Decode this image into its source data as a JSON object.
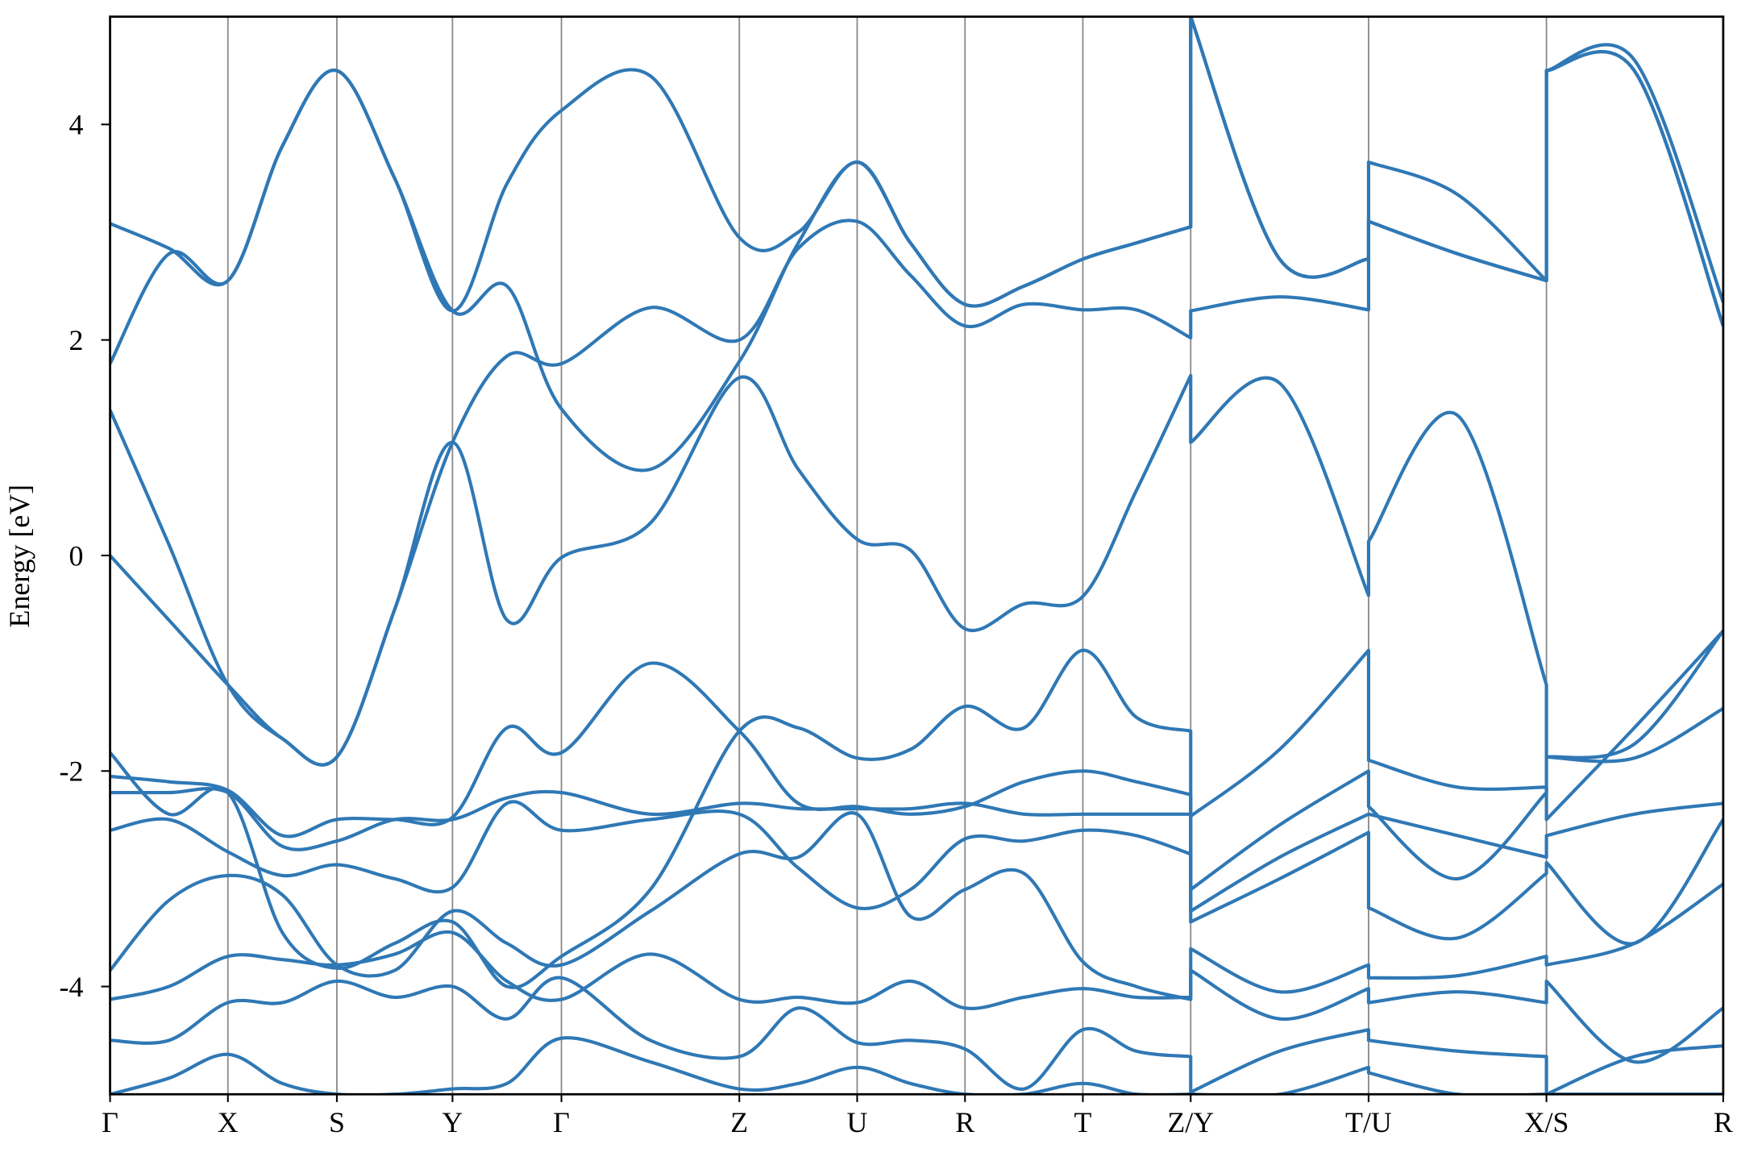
{
  "chart_data": {
    "type": "line",
    "ylabel": "Energy [eV]",
    "ylim": [
      -5,
      5
    ],
    "yticks": [
      -4,
      -2,
      0,
      2,
      4
    ],
    "xlim": [
      0,
      14.51
    ],
    "xticks": [
      {
        "value": 0,
        "label": "Γ"
      },
      {
        "value": 1.06,
        "label": "X"
      },
      {
        "value": 2.04,
        "label": "S"
      },
      {
        "value": 3.08,
        "label": "Y"
      },
      {
        "value": 4.06,
        "label": "Γ"
      },
      {
        "value": 5.66,
        "label": "Z"
      },
      {
        "value": 6.72,
        "label": "U"
      },
      {
        "value": 7.69,
        "label": "R"
      },
      {
        "value": 8.75,
        "label": "T"
      },
      {
        "value": 9.72,
        "label": "Z/Y"
      },
      {
        "value": 11.32,
        "label": "T/U"
      },
      {
        "value": 12.92,
        "label": "X/S"
      },
      {
        "value": 14.51,
        "label": "R"
      }
    ],
    "color": "#2f78b5",
    "grid_color": "#888888",
    "x": [
      0,
      0.53,
      1.06,
      1.55,
      2.04,
      2.56,
      3.08,
      3.57,
      4.06,
      4.86,
      5.66,
      6.19,
      6.72,
      7.2,
      7.69,
      8.22,
      8.75,
      9.23,
      9.72,
      9.72,
      10.52,
      11.32,
      11.32,
      12.12,
      12.92,
      12.92,
      13.71,
      14.51
    ],
    "series": [
      {
        "values": [
          0,
          -0.6,
          -1.2,
          -1.7,
          -1.87,
          -0.5,
          1.05,
          -0.6,
          -0.02,
          0.3,
          1.65,
          0.8,
          0.15,
          0.05,
          -0.68,
          -0.45,
          -0.38,
          0.6,
          1.67,
          1.05,
          1.6,
          -0.37,
          0.13,
          1.3,
          -1.2,
          -1.87,
          -1.75,
          -0.7
        ]
      },
      {
        "values": [
          1.35,
          0.1,
          -1.2,
          -1.7,
          -1.87,
          -0.5,
          1.05,
          1.85,
          1.78,
          2.3,
          2.0,
          2.85,
          3.1,
          2.6,
          2.13,
          2.33,
          2.28,
          2.28,
          2.02,
          2.27,
          2.4,
          2.28,
          3.65,
          3.35,
          2.55,
          4.5,
          4.6,
          2.35
        ]
      },
      {
        "values": [
          3.08,
          2.85,
          2.55,
          3.8,
          4.5,
          3.5,
          2.27,
          2.5,
          1.36,
          0.8,
          1.8,
          2.9,
          3.65,
          2.9,
          2.33,
          2.5,
          2.75,
          2.9,
          3.05,
          5.0,
          2.75,
          2.75,
          3.1,
          2.8,
          2.55,
          4.5,
          4.5,
          2.13
        ]
      },
      {
        "values": [
          1.78,
          2.8,
          2.55,
          3.8,
          4.5,
          3.5,
          2.27,
          3.45,
          4.13,
          4.45,
          2.95,
          3.0,
          3.65,
          2.9,
          2.33,
          2.5,
          2.75,
          2.9,
          3.05,
          5.0,
          2.75,
          2.75,
          3.1,
          2.8,
          2.55,
          4.5,
          4.5,
          2.13
        ]
      },
      {
        "values": [
          -1.83,
          -2.4,
          -2.2,
          -3.5,
          -3.83,
          -3.6,
          -3.4,
          -4.0,
          -3.72,
          -3.1,
          -1.63,
          -1.6,
          -1.88,
          -1.8,
          -1.4,
          -1.6,
          -0.88,
          -1.5,
          -1.63,
          -2.42,
          -1.8,
          -0.88,
          -1.9,
          -2.15,
          -2.15,
          -2.45,
          -1.6,
          -0.7
        ]
      },
      {
        "values": [
          -2.05,
          -2.1,
          -2.18,
          -2.6,
          -2.45,
          -2.45,
          -2.43,
          -1.6,
          -1.83,
          -1.0,
          -1.63,
          -2.3,
          -2.33,
          -2.4,
          -2.33,
          -2.1,
          -2.0,
          -2.1,
          -2.22,
          -3.1,
          -2.5,
          -2.0,
          -2.33,
          -3.0,
          -2.2,
          -1.87,
          -1.88,
          -1.42
        ]
      },
      {
        "values": [
          -2.2,
          -2.2,
          -2.2,
          -2.7,
          -2.65,
          -2.45,
          -2.45,
          -2.25,
          -2.2,
          -2.4,
          -2.3,
          -2.35,
          -2.35,
          -2.35,
          -2.3,
          -2.4,
          -2.4,
          -2.4,
          -2.4,
          -3.3,
          -2.8,
          -2.4,
          -2.4,
          -2.6,
          -2.8,
          -2.6,
          -2.4,
          -2.3
        ]
      },
      {
        "values": [
          -2.55,
          -2.45,
          -2.75,
          -2.97,
          -2.87,
          -3.0,
          -3.08,
          -2.3,
          -2.55,
          -2.45,
          -2.4,
          -2.9,
          -3.27,
          -3.1,
          -2.63,
          -2.65,
          -2.55,
          -2.6,
          -2.77,
          -3.4,
          -3.0,
          -2.57,
          -3.27,
          -3.55,
          -2.95,
          -2.85,
          -3.6,
          -2.45
        ]
      },
      {
        "values": [
          -3.85,
          -3.2,
          -2.97,
          -3.15,
          -3.8,
          -3.85,
          -3.3,
          -3.6,
          -3.8,
          -3.3,
          -2.77,
          -2.8,
          -2.4,
          -3.35,
          -3.1,
          -2.95,
          -3.77,
          -4.0,
          -4.12,
          -3.65,
          -4.05,
          -3.8,
          -3.92,
          -3.9,
          -3.72,
          -3.8,
          -3.6,
          -3.05
        ]
      },
      {
        "values": [
          -4.12,
          -4.0,
          -3.72,
          -3.75,
          -3.8,
          -3.7,
          -3.5,
          -3.95,
          -4.12,
          -3.7,
          -4.12,
          -4.1,
          -4.15,
          -3.95,
          -4.2,
          -4.1,
          -4.02,
          -4.1,
          -4.1,
          -3.85,
          -4.3,
          -4.02,
          -4.15,
          -4.05,
          -4.15,
          -3.95,
          -4.7,
          -4.2
        ]
      },
      {
        "values": [
          -4.5,
          -4.5,
          -4.15,
          -4.15,
          -3.95,
          -4.1,
          -4.0,
          -4.3,
          -3.92,
          -4.5,
          -4.65,
          -4.2,
          -4.52,
          -4.5,
          -4.58,
          -4.95,
          -4.4,
          -4.6,
          -4.65,
          -4.98,
          -4.6,
          -4.4,
          -4.5,
          -4.6,
          -4.65,
          -5.0,
          -4.65,
          -4.55
        ]
      },
      {
        "values": [
          -5.0,
          -4.85,
          -4.63,
          -4.9,
          -5.0,
          -5.0,
          -4.95,
          -4.9,
          -4.48,
          -4.7,
          -4.95,
          -4.9,
          -4.75,
          -4.9,
          -5.0,
          -5.0,
          -4.9,
          -5.0,
          -5.0,
          -5.0,
          -5.0,
          -4.75,
          -4.8,
          -5.0,
          -5.0,
          -5.0,
          -5.0,
          -5.0
        ]
      }
    ]
  }
}
